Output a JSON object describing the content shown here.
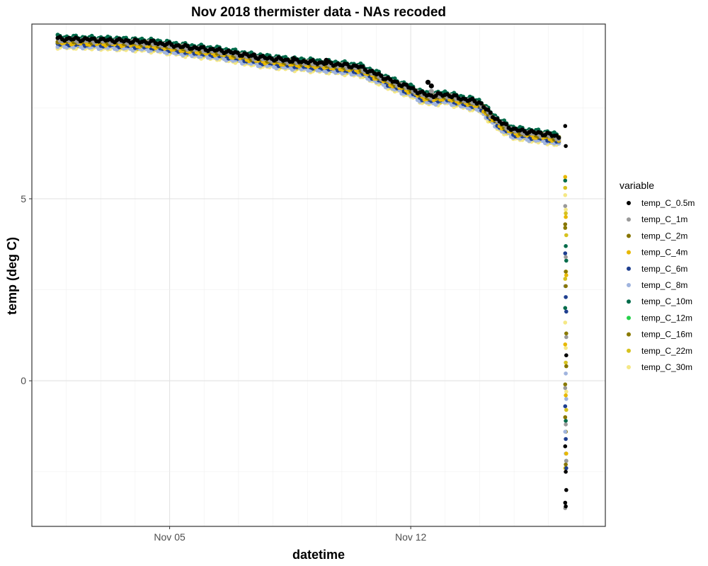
{
  "chart_data": {
    "type": "scatter",
    "title": "Nov 2018 thermister data - NAs recoded",
    "xlabel": "datetime",
    "ylabel": "temp (deg C)",
    "x_unit": "date (November 2018)",
    "xlim": [
      1.0,
      17.65
    ],
    "ylim": [
      -4,
      9.8
    ],
    "x_ticks": [
      {
        "value": 5,
        "label": "Nov 05"
      },
      {
        "value": 12,
        "label": "Nov 12"
      }
    ],
    "y_ticks": [
      {
        "value": 0,
        "label": "0"
      },
      {
        "value": 5,
        "label": "5"
      }
    ],
    "grid": true,
    "legend": {
      "title": "variable",
      "placement": "right"
    },
    "series": [
      {
        "name": "temp_C_0.5m",
        "color": "#000000",
        "offset": 0.05,
        "x": [
          1.75,
          2.5,
          3.5,
          4.5,
          5.5,
          6.5,
          7.5,
          8.5,
          9.5,
          10.5,
          11.0,
          11.5,
          12.0,
          12.3,
          12.6,
          13.0,
          13.5,
          14.0,
          14.3,
          14.6,
          15.0,
          15.5,
          16.0,
          16.3
        ],
        "y": [
          9.35,
          9.33,
          9.3,
          9.25,
          9.12,
          9.02,
          8.85,
          8.75,
          8.68,
          8.58,
          8.38,
          8.17,
          8.0,
          7.85,
          7.78,
          7.82,
          7.7,
          7.6,
          7.3,
          7.05,
          6.85,
          6.78,
          6.72,
          6.65
        ],
        "bumps": [
          {
            "x": 7.45,
            "y": 8.95
          },
          {
            "x": 8.6,
            "y": 8.85
          },
          {
            "x": 9.55,
            "y": 8.8
          },
          {
            "x": 12.5,
            "y": 8.2
          },
          {
            "x": 12.6,
            "y": 8.1
          }
        ],
        "tail": [
          7.0,
          6.45,
          0.7,
          -1.8,
          -2.5,
          -3.0,
          -3.35,
          -3.45
        ]
      },
      {
        "name": "temp_C_1m",
        "color": "#999999",
        "offset": 0.02,
        "x": [],
        "y": [],
        "bumps": [
          {
            "x": 12.6,
            "y": 7.95
          }
        ],
        "tail": [
          4.8,
          3.4,
          1.2,
          -0.2,
          -1.2,
          -2.2,
          -3.5
        ]
      },
      {
        "name": "temp_C_2m",
        "color": "#877500",
        "offset": 0.0,
        "tail": [
          4.3,
          2.6,
          0.4,
          -1.0,
          -2.3
        ]
      },
      {
        "name": "temp_C_4m",
        "color": "#E8B800",
        "offset": -0.05,
        "tail": [
          5.6,
          4.5,
          2.9,
          1.0,
          -0.4,
          -2.0
        ]
      },
      {
        "name": "temp_C_6m",
        "color": "#1F3F8F",
        "offset": -0.08,
        "tail": [
          3.5,
          2.3,
          1.9,
          -0.7,
          -1.6,
          -2.4
        ]
      },
      {
        "name": "temp_C_8m",
        "color": "#A0B4DE",
        "offset": -0.15,
        "tail": [
          2.6,
          0.2,
          -0.5,
          -1.4,
          -2.0
        ]
      },
      {
        "name": "temp_C_10m",
        "color": "#006B4A",
        "offset": 0.1,
        "tail": [
          5.5,
          3.7,
          3.3,
          2.0,
          -1.1,
          -2.2
        ]
      },
      {
        "name": "temp_C_12m",
        "color": "#26D14A",
        "offset": 0.0,
        "tail": []
      },
      {
        "name": "temp_C_16m",
        "color": "#8A7A00",
        "offset": -0.02,
        "tail": [
          4.2,
          3.0,
          1.3,
          -0.1,
          -1.4
        ]
      },
      {
        "name": "temp_C_22m",
        "color": "#D6C21F",
        "offset": -0.1,
        "tail": [
          5.3,
          4.6,
          4.0,
          2.8,
          0.5,
          -0.8,
          -2.4
        ]
      },
      {
        "name": "temp_C_30m",
        "color": "#F5E886",
        "offset": -0.18,
        "tail": [
          5.1,
          4.7,
          3.0,
          1.6,
          0.9,
          -0.3,
          -1.0
        ]
      }
    ]
  }
}
